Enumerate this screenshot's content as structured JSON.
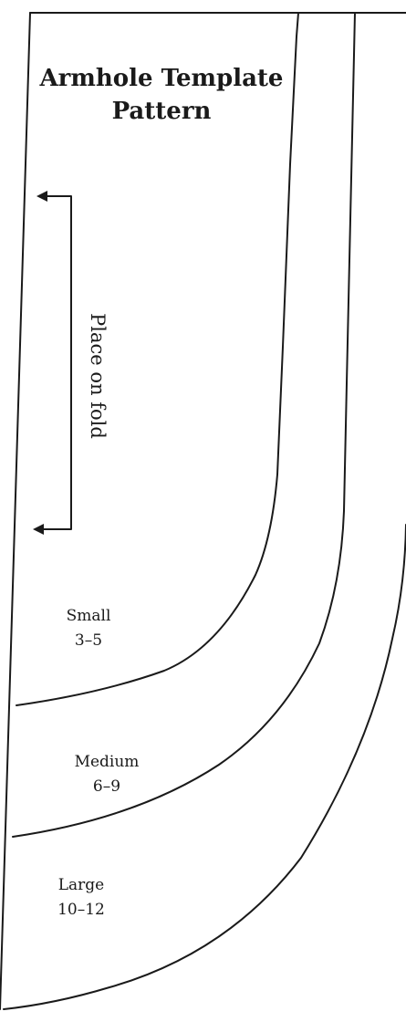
{
  "title": {
    "line1": "Armhole Template",
    "line2": "Pattern"
  },
  "fold_label": "Place on fold",
  "sizes": [
    {
      "name": "Small",
      "range": "3–5"
    },
    {
      "name": "Medium",
      "range": "6–9"
    },
    {
      "name": "Large",
      "range": "10–12"
    }
  ]
}
